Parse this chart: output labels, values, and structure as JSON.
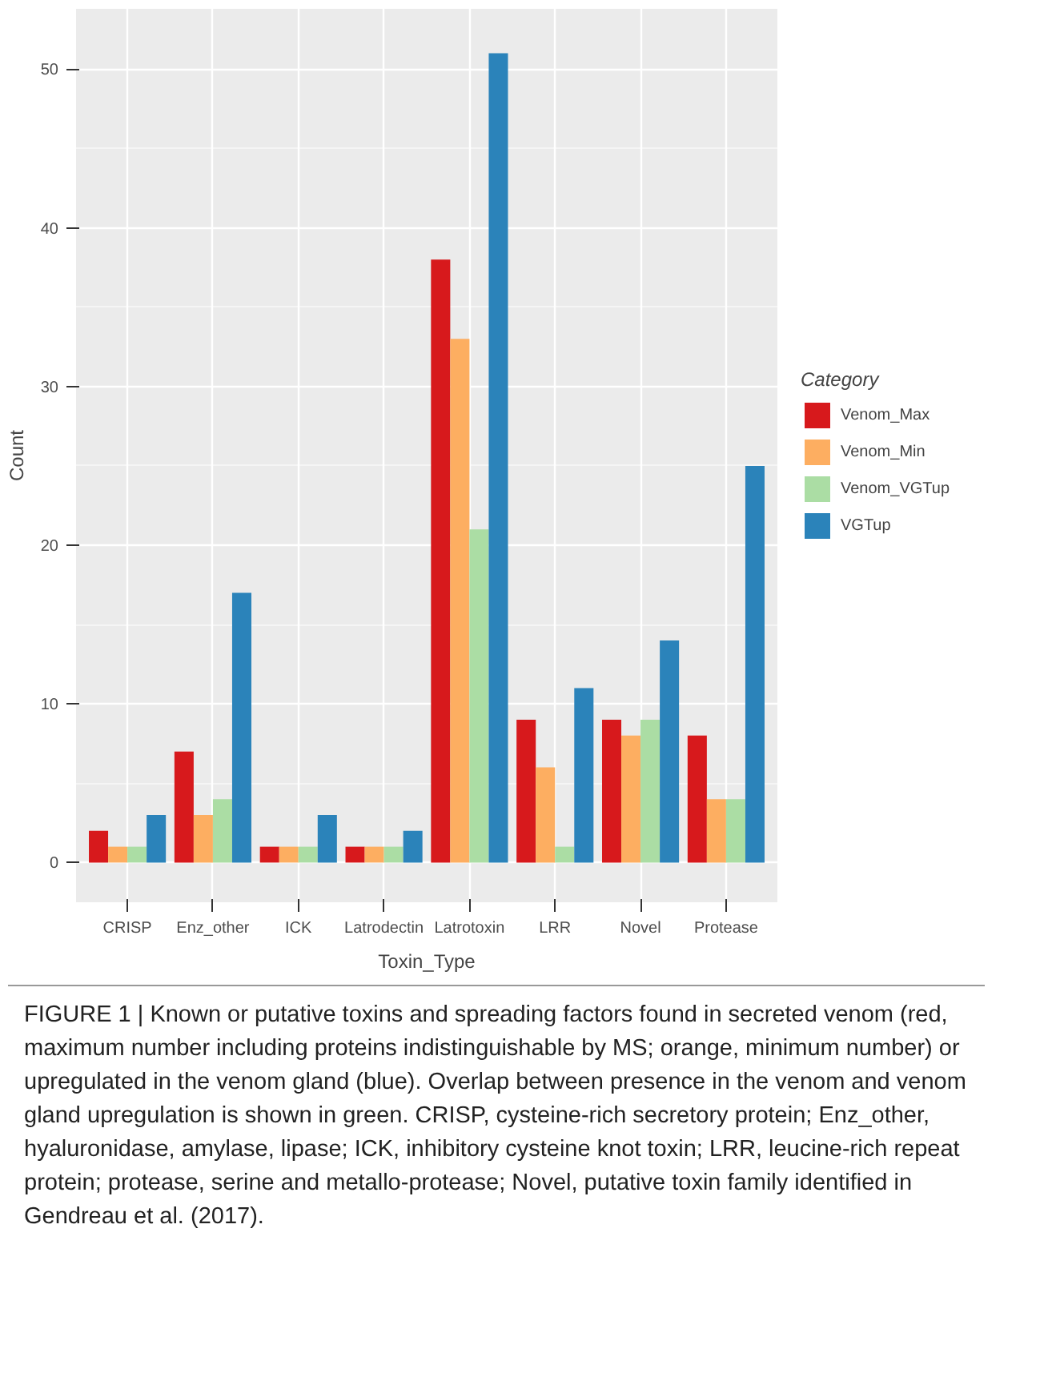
{
  "chart_data": {
    "type": "bar",
    "xlabel": "Toxin_Type",
    "ylabel": "Count",
    "legend_title": "Category",
    "categories": [
      "CRISP",
      "Enz_other",
      "ICK",
      "Latrodectin",
      "Latrotoxin",
      "LRR",
      "Novel",
      "Protease"
    ],
    "series": [
      {
        "name": "Venom_Max",
        "color": "#d7191c",
        "values": [
          2,
          7,
          1,
          1,
          38,
          9,
          9,
          8
        ]
      },
      {
        "name": "Venom_Min",
        "color": "#fdae61",
        "values": [
          1,
          3,
          1,
          1,
          33,
          6,
          8,
          4
        ]
      },
      {
        "name": "Venom_VGTup",
        "color": "#abdda4",
        "values": [
          1,
          4,
          1,
          1,
          21,
          1,
          9,
          4
        ]
      },
      {
        "name": "VGTup",
        "color": "#2b83ba",
        "values": [
          3,
          17,
          3,
          2,
          51,
          11,
          14,
          25
        ]
      }
    ],
    "ylim": [
      -2.5,
      53.8
    ],
    "yticks": [
      0,
      10,
      20,
      30,
      40,
      50
    ],
    "grid": true,
    "legend": "right",
    "annotations": [
      "FIGURE 1 | Known or putative toxins and spreading factors found in secreted venom (red, maximum number including proteins indistinguishable by MS; orange, minimum number) or upregulated in the venom gland (blue). Overlap between presence in the venom and venom gland upregulation is shown in green. CRISP, cysteine-rich secretory protein; Enz_other, hyaluronidase, amylase, lipase; ICK, inhibitory cysteine knot toxin; LRR, leucine-rich repeat protein; protease, serine and metallo-protease; Novel, putative toxin family identified in Gendreau et al. (2017)."
    ]
  }
}
